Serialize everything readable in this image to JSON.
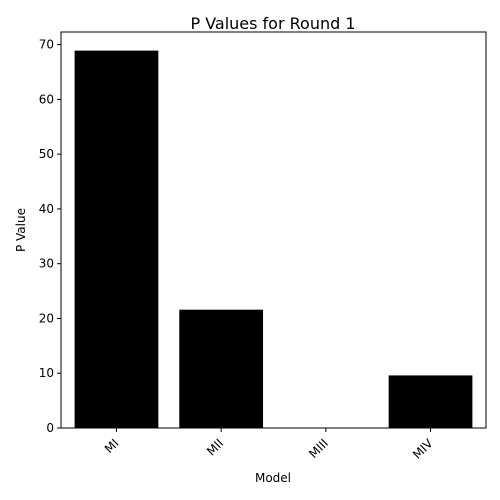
{
  "chart_data": {
    "type": "bar",
    "title": "P Values for Round 1",
    "xlabel": "Model",
    "ylabel": "P Value",
    "categories": [
      "MI",
      "MII",
      "MIII",
      "MIV"
    ],
    "values": [
      68.9,
      21.6,
      0.0,
      9.6
    ],
    "ylim": [
      0,
      72.3
    ],
    "yticks": [
      0,
      10,
      20,
      30,
      40,
      50,
      60,
      70
    ],
    "grid": false,
    "legend": "none",
    "bar_color": "#000000",
    "xtick_rotation": 45
  }
}
